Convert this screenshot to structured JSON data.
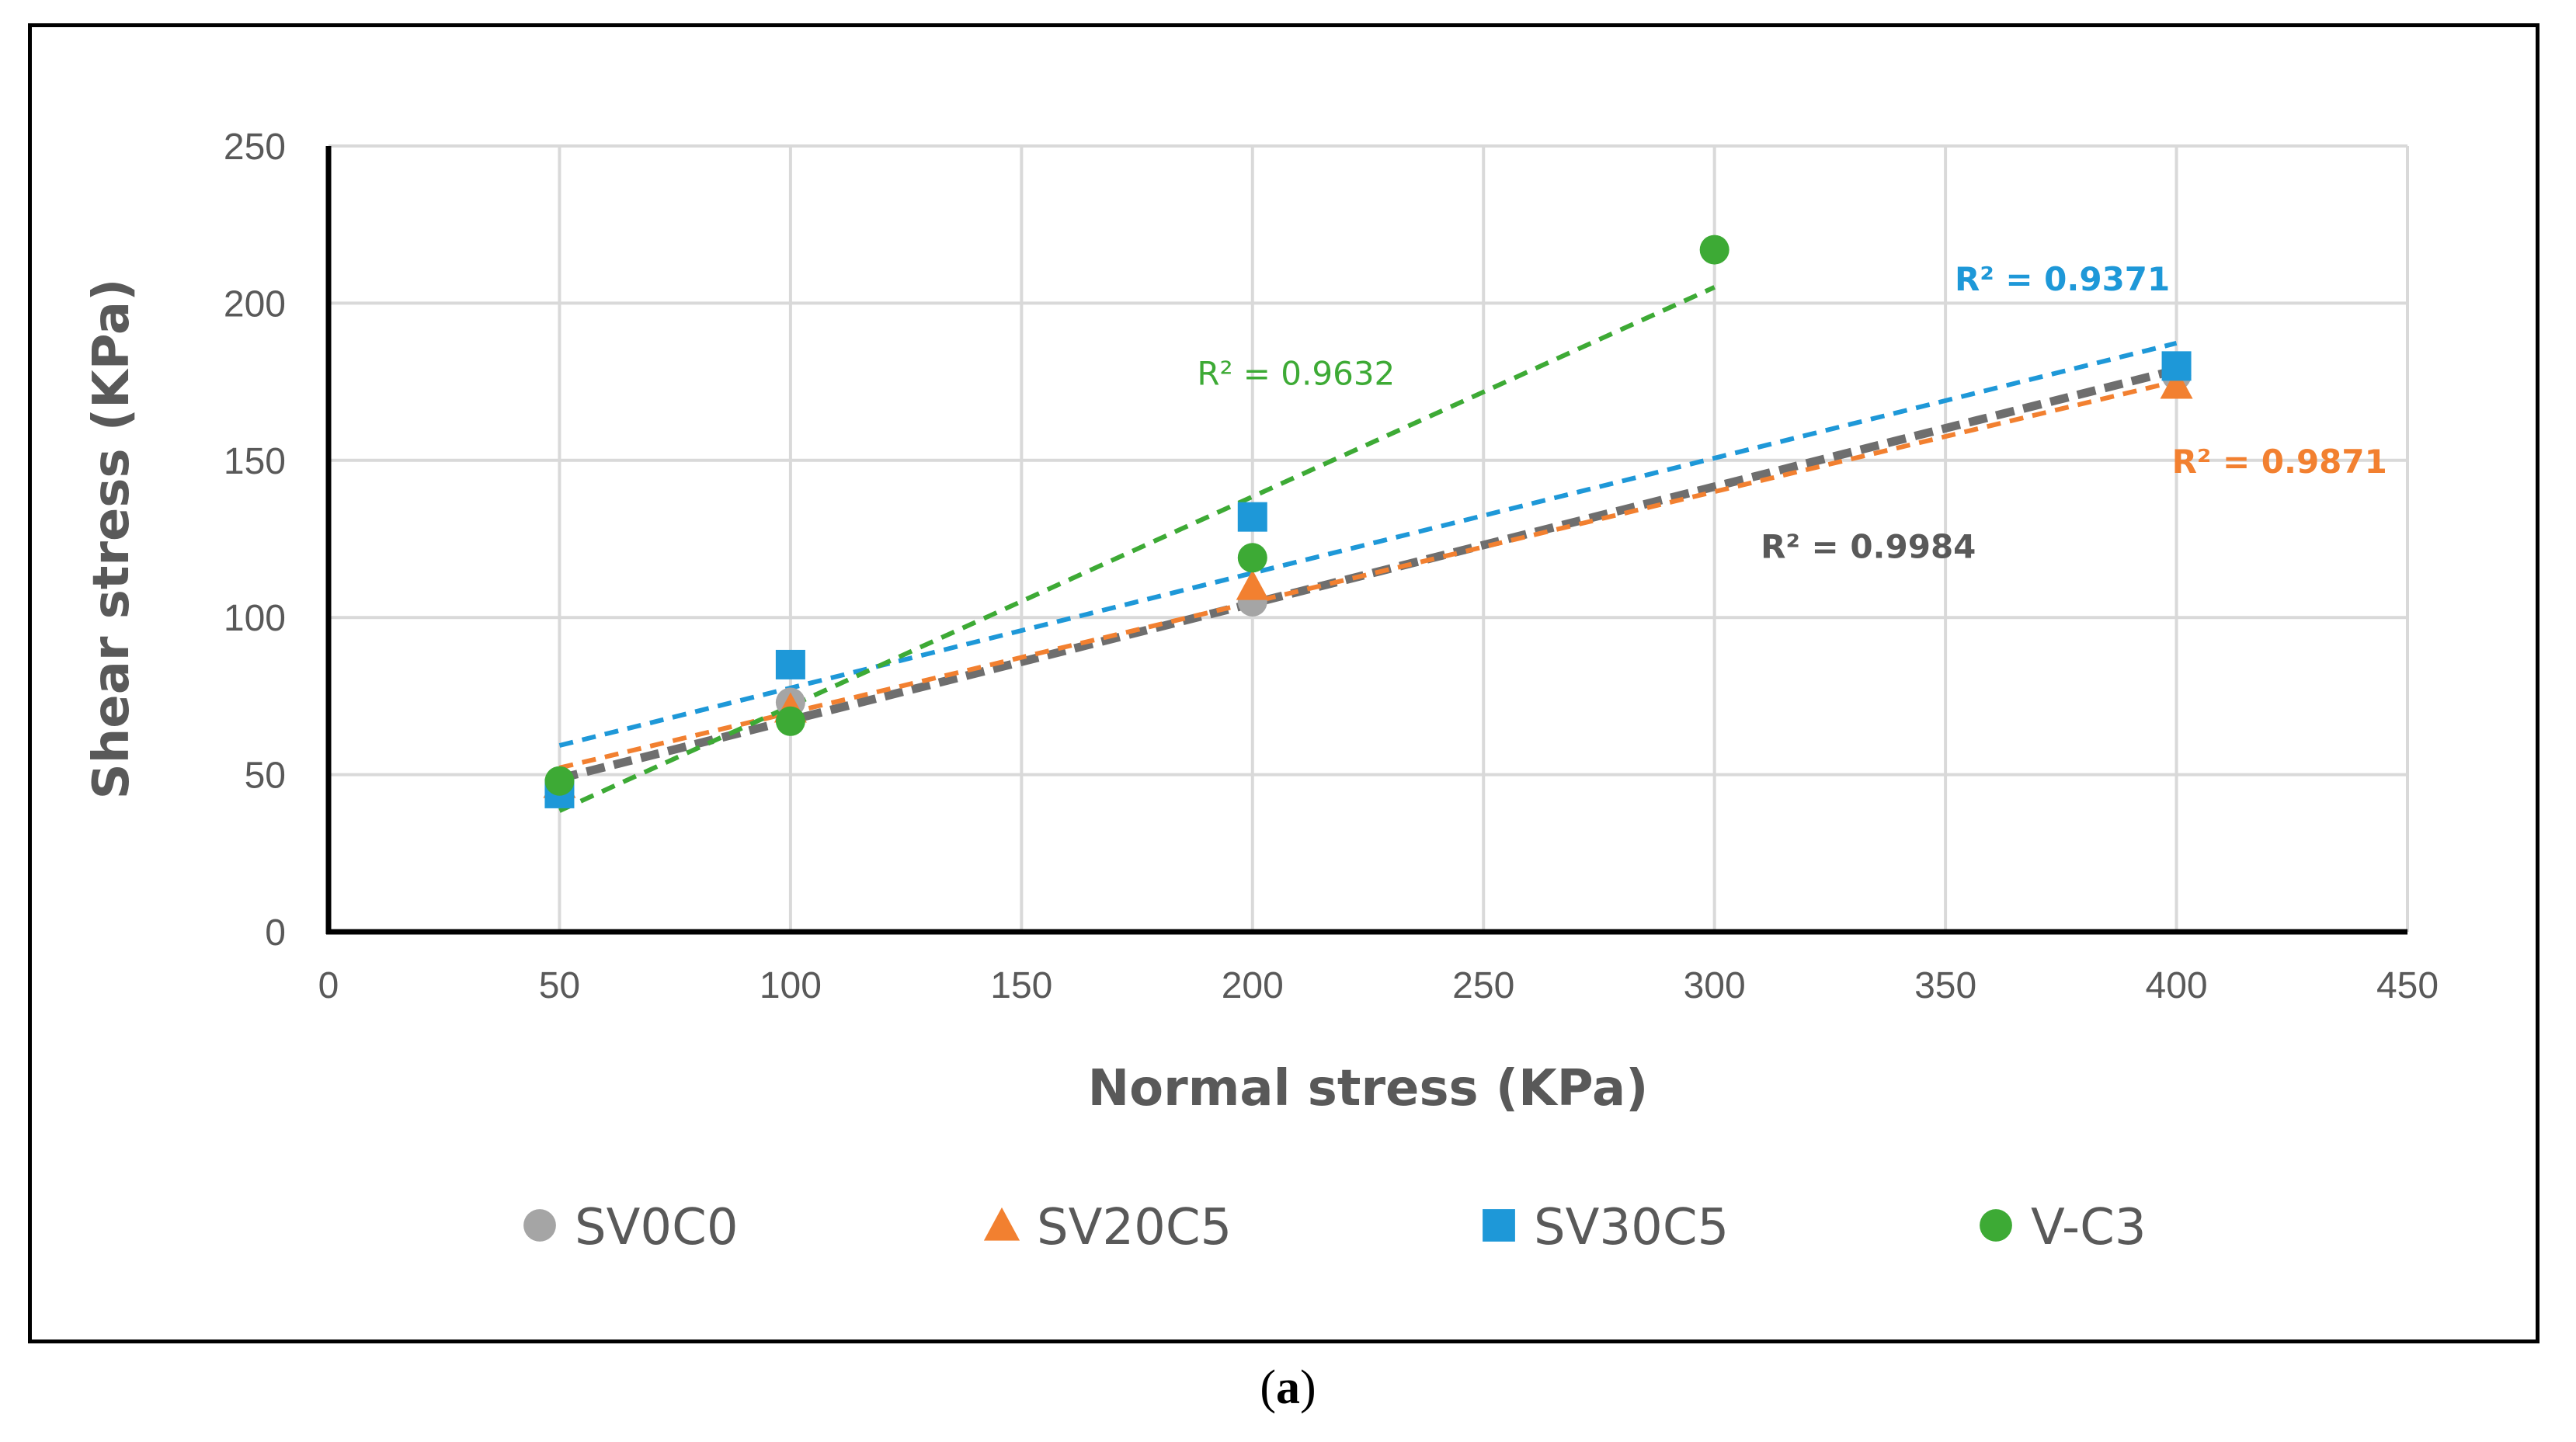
{
  "caption": {
    "open": "(",
    "letter": "a",
    "close": ")"
  },
  "chart_data": {
    "type": "scatter",
    "title": "",
    "xlabel": "Normal stress (KPa)",
    "ylabel": "Shear stress (KPa)",
    "xlim": [
      0,
      450
    ],
    "ylim": [
      0,
      250
    ],
    "x_ticks": [
      0,
      50,
      100,
      150,
      200,
      250,
      300,
      350,
      400,
      450
    ],
    "y_ticks": [
      0,
      50,
      100,
      150,
      200,
      250
    ],
    "grid": "vertical-and-horizontal",
    "legend_position": "bottom",
    "series": [
      {
        "name": "SV0C0",
        "marker": "circle",
        "color": "#A5A5A5",
        "line_color": "#6E6E6E",
        "trendline_width": "thick",
        "points": [
          [
            50,
            45
          ],
          [
            100,
            73
          ],
          [
            200,
            105
          ],
          [
            400,
            177
          ]
        ],
        "trendline": {
          "slope": 0.3714,
          "intercept": 30.2,
          "x_range": [
            50,
            400
          ]
        },
        "r2_label": "R² = 0.9984",
        "r2_bold": true,
        "r2_color": "#595959",
        "r2_anchor": [
          310,
          119
        ]
      },
      {
        "name": "SV20C5",
        "marker": "triangle",
        "color": "#F28030",
        "line_color": "#F28030",
        "trendline_width": "normal",
        "points": [
          [
            50,
            47
          ],
          [
            100,
            71
          ],
          [
            200,
            110
          ],
          [
            400,
            174
          ]
        ],
        "trendline": {
          "slope": 0.3514,
          "intercept": 34.6,
          "x_range": [
            50,
            400
          ]
        },
        "r2_label": "R² = 0.9871",
        "r2_bold": true,
        "r2_color": "#F28030",
        "r2_anchor": [
          399,
          146
        ]
      },
      {
        "name": "SV30C5",
        "marker": "square",
        "color": "#1E98D8",
        "line_color": "#1E98D8",
        "trendline_width": "normal",
        "points": [
          [
            50,
            44
          ],
          [
            100,
            85
          ],
          [
            200,
            132
          ],
          [
            400,
            180
          ]
        ],
        "trendline": {
          "slope": 0.3657,
          "intercept": 41.0,
          "x_range": [
            50,
            400
          ]
        },
        "r2_label": "R² = 0.9371",
        "r2_bold": true,
        "r2_color": "#1E98D8",
        "r2_anchor": [
          352,
          204
        ]
      },
      {
        "name": "V-C3",
        "marker": "circle",
        "color": "#3DAA35",
        "line_color": "#3DAA35",
        "trendline_width": "normal",
        "points": [
          [
            50,
            48
          ],
          [
            100,
            67
          ],
          [
            200,
            119
          ],
          [
            300,
            217
          ]
        ],
        "trendline": {
          "slope": 0.6662,
          "intercept": 5.2,
          "x_range": [
            50,
            300
          ]
        },
        "r2_label": "R² = 0.9632",
        "r2_bold": false,
        "r2_color": "#3DAA35",
        "r2_anchor": [
          188,
          174
        ]
      }
    ]
  }
}
